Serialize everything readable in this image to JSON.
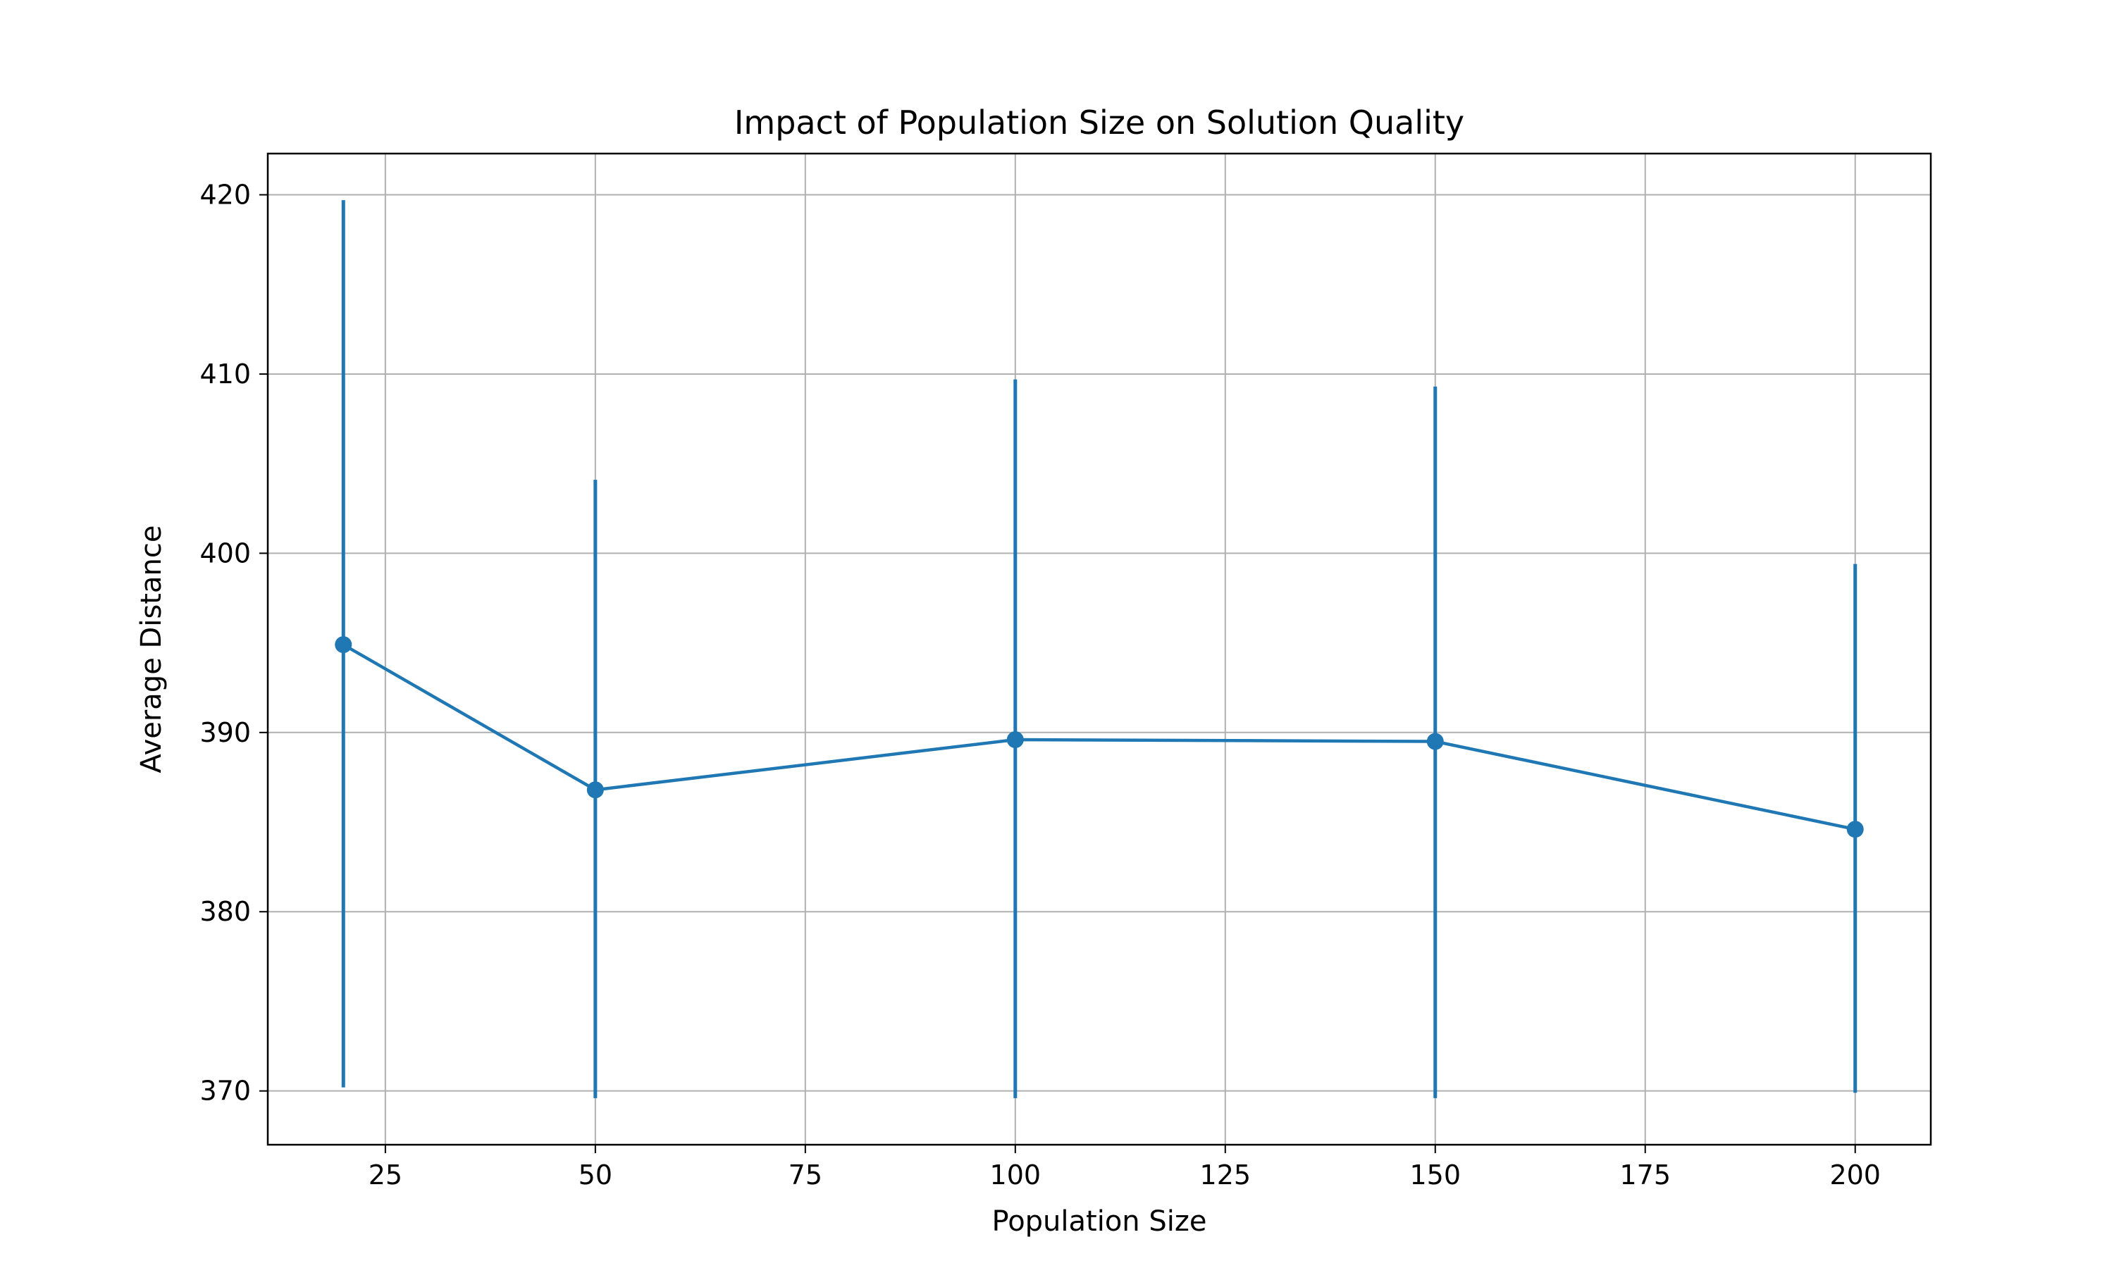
{
  "chart_data": {
    "type": "line",
    "title": "Impact of Population Size on Solution Quality",
    "xlabel": "Population Size",
    "ylabel": "Average Distance",
    "xlim": [
      11,
      209
    ],
    "ylim": [
      367,
      422.3
    ],
    "xticks": [
      25,
      50,
      75,
      100,
      125,
      150,
      175,
      200
    ],
    "yticks": [
      370,
      380,
      390,
      400,
      410,
      420
    ],
    "grid": true,
    "legend": "none",
    "color": "#1f77b4",
    "series": [
      {
        "x": [
          20,
          50,
          100,
          150,
          200
        ],
        "y": [
          394.9,
          386.8,
          389.6,
          389.5,
          384.6
        ],
        "error_low": [
          370.2,
          369.6,
          369.6,
          369.6,
          369.9
        ],
        "error_high": [
          419.7,
          404.1,
          409.7,
          409.3,
          399.4
        ]
      }
    ]
  }
}
